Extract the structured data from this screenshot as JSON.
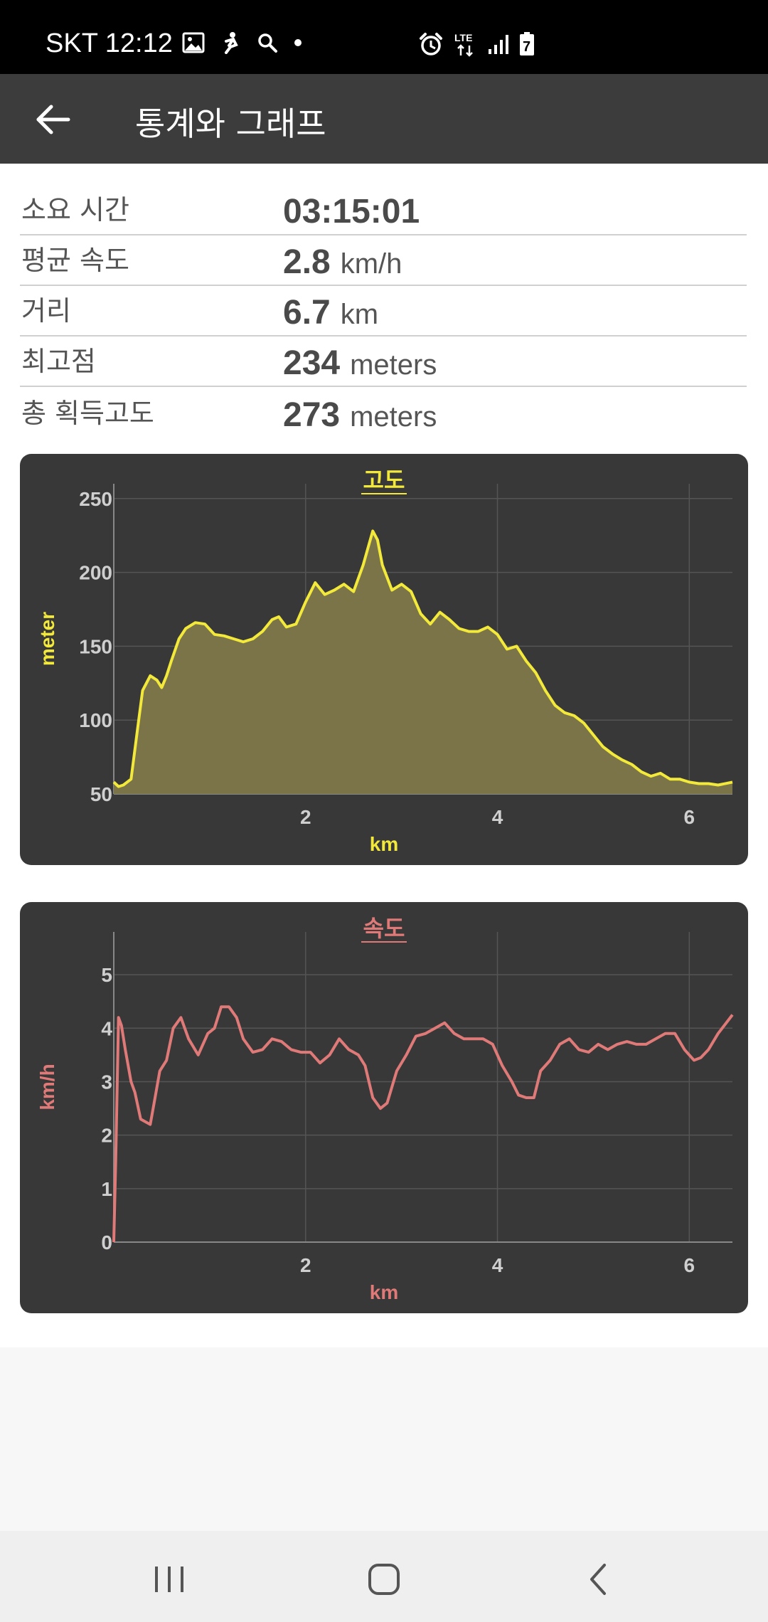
{
  "status_bar": {
    "carrier_time": "SKT 12:12"
  },
  "app_bar": {
    "title": "통계와 그래프"
  },
  "stats": [
    {
      "label": "소요 시간",
      "value": "03:15:01",
      "unit": ""
    },
    {
      "label": "평균 속도",
      "value": "2.8",
      "unit": "km/h"
    },
    {
      "label": "거리",
      "value": "6.7",
      "unit": "km"
    },
    {
      "label": "최고점",
      "value": "234",
      "unit": "meters"
    },
    {
      "label": "총 획득고도",
      "value": "273",
      "unit": "meters"
    }
  ],
  "chart_data": [
    {
      "type": "area",
      "title": "고도",
      "xlabel": "km",
      "ylabel": "meter",
      "color": "#f2e93b",
      "fill": "#7a7448",
      "xlim": [
        0,
        6.45
      ],
      "ylim": [
        50,
        260
      ],
      "xticks": [
        2,
        4,
        6
      ],
      "yticks": [
        50,
        100,
        150,
        200,
        250
      ],
      "x": [
        0,
        0.05,
        0.1,
        0.18,
        0.25,
        0.3,
        0.38,
        0.45,
        0.5,
        0.55,
        0.6,
        0.68,
        0.75,
        0.85,
        0.95,
        1.05,
        1.15,
        1.25,
        1.35,
        1.45,
        1.55,
        1.65,
        1.72,
        1.8,
        1.9,
        2.0,
        2.1,
        2.2,
        2.3,
        2.4,
        2.5,
        2.6,
        2.7,
        2.75,
        2.8,
        2.9,
        3.0,
        3.1,
        3.2,
        3.3,
        3.4,
        3.5,
        3.6,
        3.7,
        3.8,
        3.9,
        4.0,
        4.1,
        4.2,
        4.3,
        4.4,
        4.5,
        4.6,
        4.7,
        4.8,
        4.9,
        5.0,
        5.1,
        5.2,
        5.3,
        5.4,
        5.5,
        5.6,
        5.7,
        5.8,
        5.9,
        6.0,
        6.1,
        6.2,
        6.3,
        6.45
      ],
      "y": [
        58,
        55,
        56,
        60,
        95,
        120,
        130,
        127,
        122,
        130,
        140,
        155,
        162,
        166,
        165,
        158,
        157,
        155,
        153,
        155,
        160,
        168,
        170,
        163,
        165,
        180,
        193,
        185,
        188,
        192,
        187,
        205,
        228,
        222,
        205,
        188,
        192,
        187,
        172,
        165,
        173,
        168,
        162,
        160,
        160,
        163,
        158,
        148,
        150,
        140,
        132,
        120,
        110,
        105,
        103,
        98,
        90,
        82,
        77,
        73,
        70,
        65,
        62,
        64,
        60,
        60,
        58,
        57,
        57,
        56,
        58
      ]
    },
    {
      "type": "line",
      "title": "속도",
      "xlabel": "km",
      "ylabel": "km/h",
      "color": "#e07a78",
      "xlim": [
        0,
        6.45
      ],
      "ylim": [
        0,
        5.8
      ],
      "xticks": [
        2,
        4,
        6
      ],
      "yticks": [
        0,
        1,
        2,
        3,
        4,
        5
      ],
      "x": [
        0,
        0.02,
        0.05,
        0.08,
        0.12,
        0.18,
        0.22,
        0.28,
        0.33,
        0.38,
        0.42,
        0.48,
        0.55,
        0.62,
        0.7,
        0.78,
        0.88,
        0.98,
        1.05,
        1.12,
        1.2,
        1.28,
        1.35,
        1.45,
        1.55,
        1.65,
        1.75,
        1.85,
        1.95,
        2.05,
        2.15,
        2.25,
        2.35,
        2.45,
        2.55,
        2.62,
        2.7,
        2.78,
        2.85,
        2.95,
        3.05,
        3.15,
        3.25,
        3.35,
        3.45,
        3.55,
        3.65,
        3.75,
        3.85,
        3.95,
        4.05,
        4.15,
        4.22,
        4.3,
        4.38,
        4.45,
        4.55,
        4.65,
        4.75,
        4.85,
        4.95,
        5.05,
        5.15,
        5.25,
        5.35,
        5.45,
        5.55,
        5.65,
        5.75,
        5.85,
        5.95,
        6.05,
        6.12,
        6.2,
        6.3,
        6.45
      ],
      "y": [
        0,
        1.5,
        4.2,
        4.05,
        3.6,
        3.0,
        2.8,
        2.3,
        2.25,
        2.2,
        2.6,
        3.2,
        3.4,
        4.0,
        4.2,
        3.8,
        3.5,
        3.9,
        4.0,
        4.4,
        4.4,
        4.2,
        3.8,
        3.55,
        3.6,
        3.8,
        3.75,
        3.6,
        3.55,
        3.55,
        3.35,
        3.5,
        3.8,
        3.6,
        3.5,
        3.3,
        2.7,
        2.5,
        2.6,
        3.2,
        3.5,
        3.85,
        3.9,
        4.0,
        4.1,
        3.9,
        3.8,
        3.8,
        3.8,
        3.7,
        3.3,
        3.0,
        2.75,
        2.7,
        2.7,
        3.2,
        3.4,
        3.7,
        3.8,
        3.6,
        3.55,
        3.7,
        3.6,
        3.7,
        3.75,
        3.7,
        3.7,
        3.8,
        3.9,
        3.9,
        3.6,
        3.4,
        3.45,
        3.6,
        3.9,
        4.25
      ]
    }
  ]
}
